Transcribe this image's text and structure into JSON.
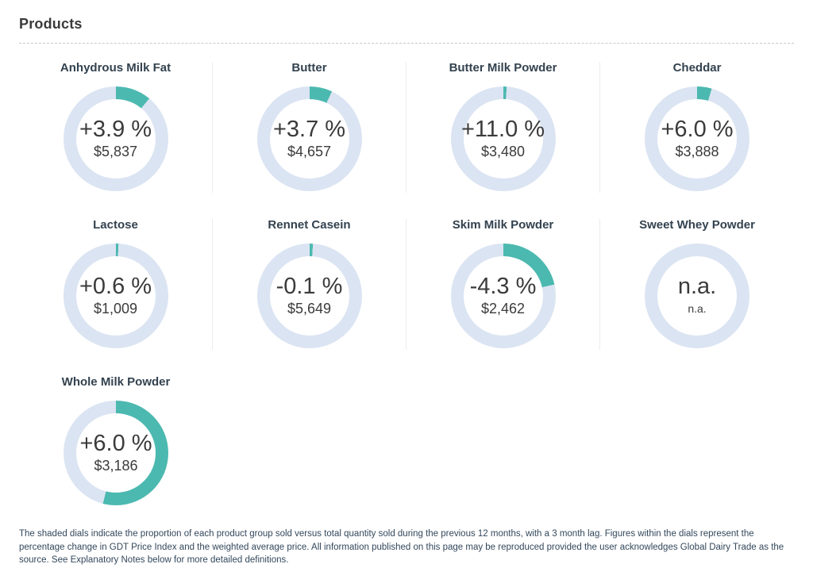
{
  "page": {
    "title": "Products"
  },
  "colors": {
    "arc_teal": "#4cb9b0",
    "ring_blue": "#dbe4f2",
    "title_text": "#33424f",
    "value_text": "#3b3b3b"
  },
  "chart_data": {
    "type": "pie",
    "subtype": "donut-gauge-grid",
    "title": "Products",
    "legend_position": "none",
    "note": "shaded arc = proportion of product group sold vs total quantity sold, previous 12 months with 3 month lag; arc starts at 12 o'clock clockwise",
    "gauges": [
      {
        "name": "Anhydrous Milk Fat",
        "change": "+3.9 %",
        "price": "$5,837",
        "shaded_pct": 11
      },
      {
        "name": "Butter",
        "change": "+3.7 %",
        "price": "$4,657",
        "shaded_pct": 7
      },
      {
        "name": "Butter Milk Powder",
        "change": "+11.0 %",
        "price": "$3,480",
        "shaded_pct": 1
      },
      {
        "name": "Cheddar",
        "change": "+6.0 %",
        "price": "$3,888",
        "shaded_pct": 4.5
      },
      {
        "name": "Lactose",
        "change": "+0.6 %",
        "price": "$1,009",
        "shaded_pct": 0.8
      },
      {
        "name": "Rennet Casein",
        "change": "-0.1 %",
        "price": "$5,649",
        "shaded_pct": 1
      },
      {
        "name": "Skim Milk Powder",
        "change": "-4.3 %",
        "price": "$2,462",
        "shaded_pct": 21.5
      },
      {
        "name": "Sweet Whey Powder",
        "change": "n.a.",
        "price": "n.a.",
        "shaded_pct": 0
      },
      {
        "name": "Whole Milk Powder",
        "change": "+6.0 %",
        "price": "$3,186",
        "shaded_pct": 54
      }
    ]
  },
  "footer": {
    "text": "The shaded dials indicate the proportion of each product group sold versus total quantity sold during the previous 12 months, with a 3 month lag. Figures within the dials represent the percentage change in GDT Price Index and the weighted average price. All information published on this page may be reproduced provided the user acknowledges Global Dairy Trade as the source. See Explanatory Notes below for more detailed definitions."
  }
}
